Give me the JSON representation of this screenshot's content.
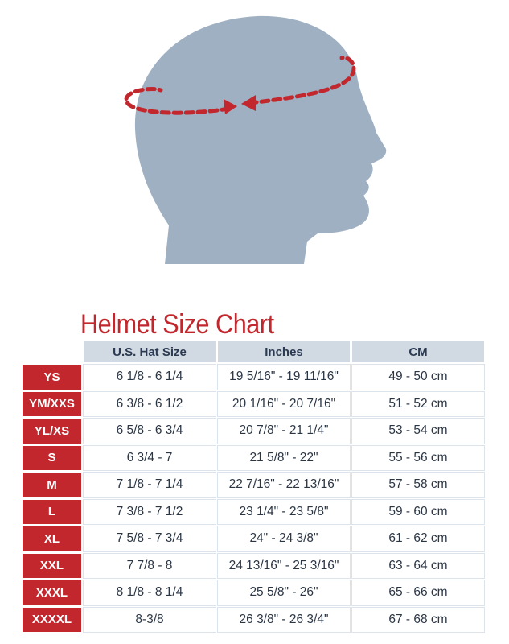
{
  "title": "Helmet Size Chart",
  "colors": {
    "accent": "#c1272d",
    "head": "#9fb0c2",
    "header_bg": "#d1d9e2"
  },
  "columns": [
    "U.S. Hat Size",
    "Inches",
    "CM"
  ],
  "rows": [
    {
      "size": "YS",
      "hat": "6 1/8 - 6 1/4",
      "inches": "19 5/16\" - 19 11/16\"",
      "cm": "49 - 50 cm"
    },
    {
      "size": "YM/XXS",
      "hat": "6 3/8 - 6 1/2",
      "inches": "20 1/16\" - 20 7/16\"",
      "cm": "51 - 52 cm"
    },
    {
      "size": "YL/XS",
      "hat": "6 5/8 - 6 3/4",
      "inches": "20 7/8\" - 21 1/4\"",
      "cm": "53 - 54 cm"
    },
    {
      "size": "S",
      "hat": "6 3/4 - 7",
      "inches": "21 5/8\" - 22\"",
      "cm": "55 - 56 cm"
    },
    {
      "size": "M",
      "hat": "7 1/8 - 7 1/4",
      "inches": "22 7/16\" - 22 13/16\"",
      "cm": "57 - 58 cm"
    },
    {
      "size": "L",
      "hat": "7 3/8 - 7 1/2",
      "inches": "23 1/4\" - 23 5/8\"",
      "cm": "59 - 60 cm"
    },
    {
      "size": "XL",
      "hat": "7 5/8 - 7 3/4",
      "inches": "24\" - 24 3/8\"",
      "cm": "61 - 62 cm"
    },
    {
      "size": "XXL",
      "hat": "7 7/8 - 8",
      "inches": "24 13/16\" - 25 3/16\"",
      "cm": "63 - 64 cm"
    },
    {
      "size": "XXXL",
      "hat": "8 1/8 - 8 1/4",
      "inches": "25 5/8\" - 26\"",
      "cm": "65 - 66 cm"
    },
    {
      "size": "XXXXL",
      "hat": "8-3/8",
      "inches": "26 3/8\" - 26 3/4\"",
      "cm": "67 - 68 cm"
    }
  ]
}
